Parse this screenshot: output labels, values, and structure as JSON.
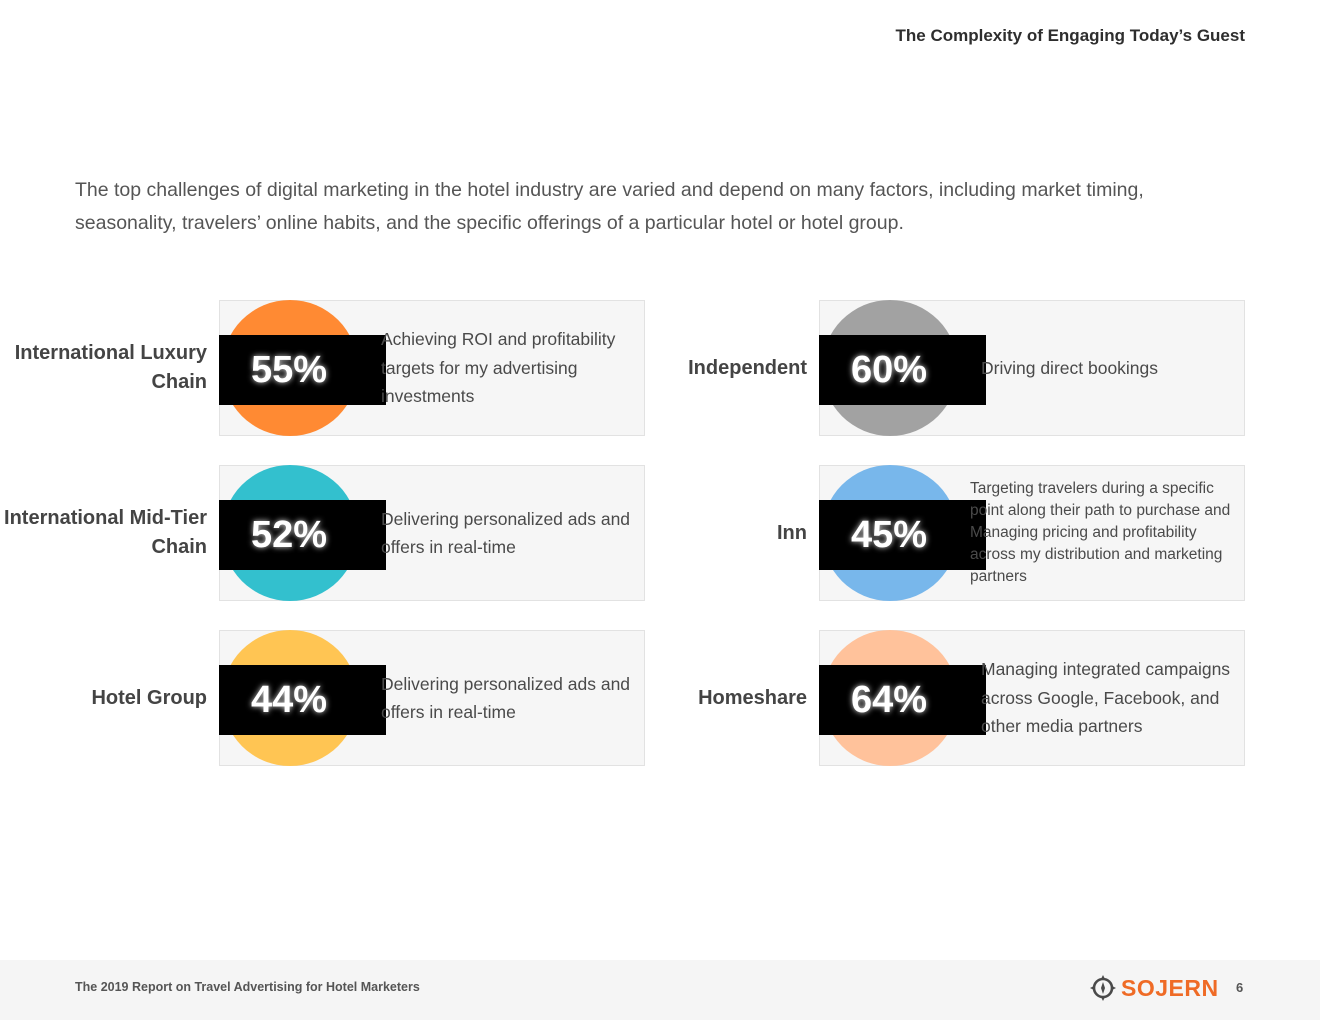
{
  "header": {
    "title": "The Complexity of Engaging Today’s Guest"
  },
  "intro": {
    "text": "The top challenges of digital marketing in the hotel industry are varied and depend on many factors, including market timing, seasonality, travelers’ online habits, and the specific offerings of a particular hotel or hotel group."
  },
  "segments": [
    {
      "label": "International Luxury Chain",
      "value": "55%",
      "description": "Achieving ROI and profitability targets for my advertising investments",
      "color": "#ff8a33"
    },
    {
      "label": "Independent",
      "value": "60%",
      "description": "Driving direct bookings",
      "color": "#a2a2a2"
    },
    {
      "label": "International Mid-Tier Chain",
      "value": "52%",
      "description": "Delivering personalized ads and offers in real-time",
      "color": "#33c0ce"
    },
    {
      "label": "Inn",
      "value": "45%",
      "description": "Targeting travelers during a specific point along their path to purchase and Managing pricing and profitability across my distribution and marketing partners",
      "color": "#78b7eb"
    },
    {
      "label": "Hotel Group",
      "value": "44%",
      "description": "Delivering personalized ads and offers in real-time",
      "color": "#ffc553"
    },
    {
      "label": "Homeshare",
      "value": "64%",
      "description": "Managing integrated campaigns across Google, Facebook, and other media partners",
      "color": "#ffc29b"
    }
  ],
  "footer": {
    "report_title": "The 2019 Report on Travel Advertising for Hotel Marketers",
    "logo_text": "SOJERN",
    "logo_icon": "compass-icon",
    "page_number": "6",
    "brand_color": "#ef6b26"
  }
}
